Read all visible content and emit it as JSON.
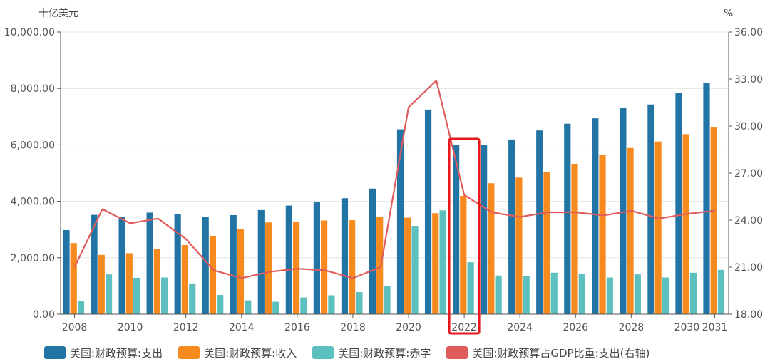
{
  "chart_data": {
    "type": "bar",
    "left_unit": "十亿美元",
    "right_unit": "%",
    "left_ticks": [
      "0.00",
      "2,000.00",
      "4,000.00",
      "6,000.00",
      "8,000.00",
      "10,000.00"
    ],
    "right_ticks": [
      "18.00",
      "21.00",
      "24.00",
      "27.00",
      "30.00",
      "33.00",
      "36.00"
    ],
    "ylim_left": [
      0,
      10000
    ],
    "ylim_right": [
      18,
      36
    ],
    "x": [
      2008,
      2009,
      2010,
      2011,
      2012,
      2013,
      2014,
      2015,
      2016,
      2017,
      2018,
      2019,
      2020,
      2021,
      2022,
      2023,
      2024,
      2025,
      2026,
      2027,
      2028,
      2029,
      2030,
      2031
    ],
    "x_tick_labels": [
      "2008",
      "2010",
      "2012",
      "2014",
      "2016",
      "2018",
      "2020",
      "2022",
      "2024",
      "2026",
      "2028",
      "2030",
      "2031"
    ],
    "highlight_year": 2022,
    "series": [
      {
        "name": "美国:财政预算:支出",
        "axis": "left",
        "type": "bar",
        "color": "#2274a5",
        "values": [
          2980,
          3520,
          3460,
          3600,
          3540,
          3450,
          3510,
          3690,
          3850,
          3980,
          4110,
          4450,
          6550,
          7250,
          6010,
          6010,
          6190,
          6510,
          6750,
          6940,
          7300,
          7430,
          7850,
          8200
        ]
      },
      {
        "name": "美国:财政预算:收入",
        "axis": "left",
        "type": "bar",
        "color": "#f68a1e",
        "values": [
          2520,
          2100,
          2160,
          2300,
          2450,
          2770,
          3020,
          3250,
          3270,
          3320,
          3330,
          3460,
          3420,
          3580,
          4190,
          4640,
          4840,
          5040,
          5330,
          5640,
          5890,
          6120,
          6380,
          6640
        ]
      },
      {
        "name": "美国:财政预算:赤字",
        "axis": "left",
        "type": "bar",
        "color": "#5bc0be",
        "values": [
          460,
          1410,
          1290,
          1300,
          1090,
          680,
          490,
          440,
          590,
          670,
          780,
          990,
          3130,
          3680,
          1840,
          1370,
          1350,
          1470,
          1420,
          1300,
          1410,
          1300,
          1470,
          1570
        ]
      },
      {
        "name": "美国:财政预算占GDP比重:支出(右轴)",
        "axis": "right",
        "type": "line",
        "color": "#e05c5c",
        "values": [
          21.0,
          24.7,
          23.8,
          24.1,
          22.8,
          20.8,
          20.3,
          20.7,
          20.9,
          20.8,
          20.3,
          21.0,
          31.2,
          32.9,
          25.6,
          24.5,
          24.2,
          24.5,
          24.5,
          24.3,
          24.6,
          24.1,
          24.4,
          24.6
        ]
      }
    ]
  }
}
